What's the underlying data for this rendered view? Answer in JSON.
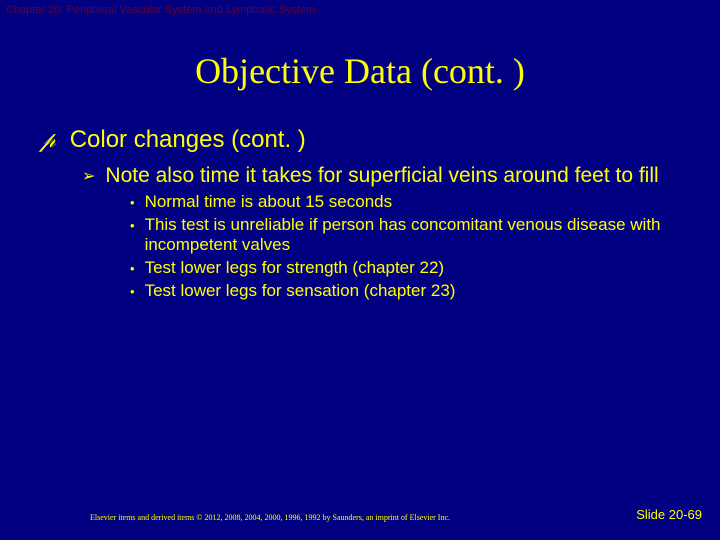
{
  "colors": {
    "background": "#000080",
    "text": "#ffff00",
    "header": "#660033"
  },
  "header": {
    "chapter": "Chapter 20: Peripheral Vascular System and Lymphatic System"
  },
  "title": "Objective Data (cont. )",
  "body": {
    "level1": {
      "text": "Color changes (cont. )"
    },
    "level2": {
      "text": "Note also time it takes for superficial veins around feet to fill"
    },
    "level3": [
      "Normal time is about 15 seconds",
      "This test is unreliable if person has concomitant venous disease with incompetent valves",
      "Test lower legs for strength (chapter 22)",
      "Test lower legs for sensation (chapter 23)"
    ]
  },
  "footer": {
    "copyright": "Elsevier items and derived items © 2012, 2008, 2004, 2000, 1996, 1992 by Saunders, an imprint of Elsevier Inc.",
    "slide": "Slide 20-69"
  }
}
